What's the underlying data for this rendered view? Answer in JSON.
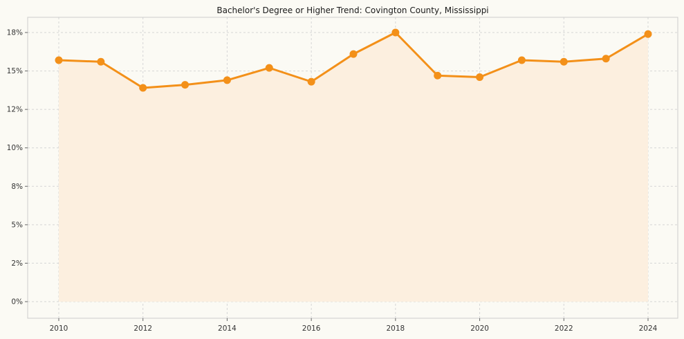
{
  "title": "Bachelor's Degree or Higher Trend: Covington County, Mississippi",
  "chart_data": {
    "type": "area",
    "title": "Bachelor's Degree or Higher Trend: Covington County, Mississippi",
    "x": [
      2010,
      2011,
      2012,
      2013,
      2014,
      2015,
      2016,
      2017,
      2018,
      2019,
      2020,
      2021,
      2022,
      2023,
      2024
    ],
    "series": [
      {
        "name": "Bachelor's Degree or Higher (%)",
        "values": [
          15.7,
          15.6,
          13.9,
          14.1,
          14.4,
          15.2,
          14.3,
          16.1,
          17.5,
          14.7,
          14.6,
          15.7,
          15.6,
          15.8,
          17.4
        ]
      }
    ],
    "xticks": [
      2010,
      2012,
      2014,
      2016,
      2018,
      2020,
      2022,
      2024
    ],
    "yticks": [
      0,
      2.5,
      5,
      7.5,
      10,
      12.5,
      15,
      17.5
    ],
    "ytick_labels": [
      "0%",
      "2%",
      "5%",
      "8%",
      "10%",
      "12%",
      "15%",
      "18%"
    ],
    "ylim": [
      0,
      17.5
    ],
    "grid": true,
    "legend": "none",
    "colors": {
      "line": "#f39019",
      "marker": "#f39019",
      "area_fill": "#fcefdf",
      "background": "#fbfaf4",
      "grid": "#d5d5d5",
      "plot_border": "#cccccc",
      "tick": "#666666",
      "tick_label": "#333333"
    }
  }
}
